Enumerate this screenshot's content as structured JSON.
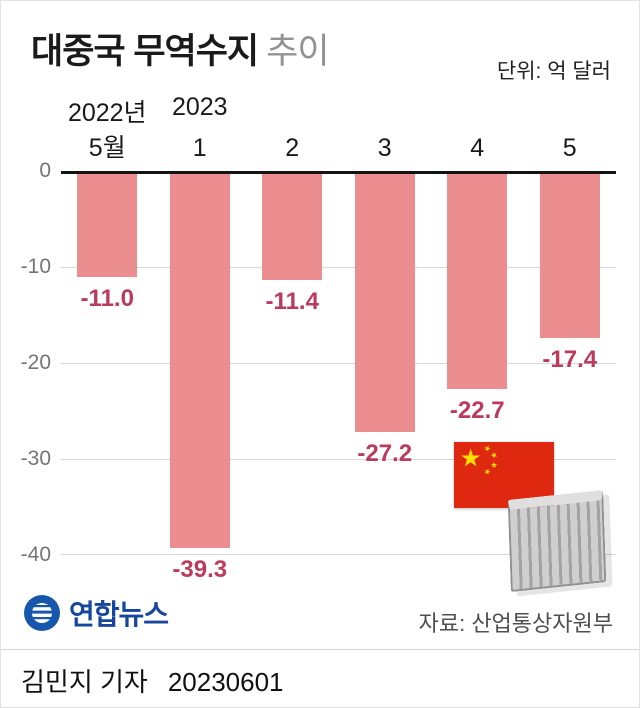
{
  "header": {
    "title": "대중국 무역수지",
    "title_suffix": "추이",
    "unit_label": "단위: 억 달러"
  },
  "chart_data": {
    "type": "bar",
    "title": "대중국 무역수지 추이",
    "unit": "억 달러",
    "year_labels": [
      "2022년",
      "2023"
    ],
    "categories": [
      "5월",
      "1",
      "2",
      "3",
      "4",
      "5"
    ],
    "values": [
      -11.0,
      -39.3,
      -11.4,
      -27.2,
      -22.7,
      -17.4
    ],
    "value_labels": [
      "-11.0",
      "-39.3",
      "-11.4",
      "-27.2",
      "-22.7",
      "-17.4"
    ],
    "y_ticks": [
      0,
      -10,
      -20,
      -30,
      -40
    ],
    "ylim": [
      -40,
      0
    ],
    "grid": true,
    "legend": "none",
    "bar_color": "#ec8e8f",
    "value_color": "#bc3a5c"
  },
  "icons": {
    "flag": "china-flag-icon",
    "container": "shipping-container-icon",
    "logo": "yonhap-logo-icon"
  },
  "footer": {
    "agency": "연합뉴스",
    "source": "자료: 산업통상자원부",
    "byline_name": "김민지 기자",
    "byline_date": "20230601"
  }
}
